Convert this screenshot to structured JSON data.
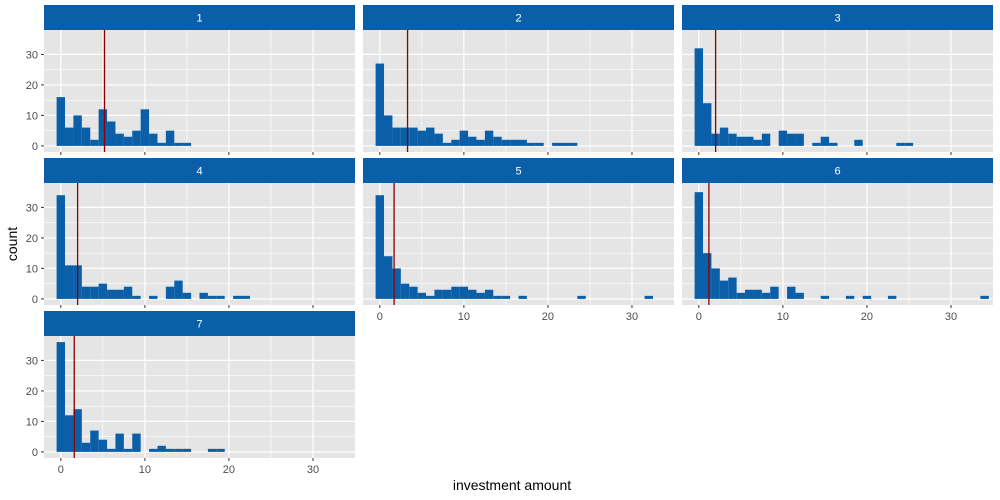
{
  "colors": {
    "bar": "#0a5fa8",
    "strip": "#0a5fa8",
    "panel_bg": "#e5e5e5",
    "grid": "#ffffff",
    "mean_line": "#8b0000"
  },
  "chart_data": {
    "type": "bar",
    "subtype": "faceted-histogram",
    "xlabel": "investment amount",
    "ylabel": "count",
    "xlim": [
      -2,
      35
    ],
    "ylim": [
      -2,
      38
    ],
    "x_ticks": [
      0,
      10,
      20,
      30
    ],
    "y_ticks": [
      0,
      10,
      20,
      30
    ],
    "bin_width": 1,
    "grid": true,
    "facet_columns": 3,
    "facets": [
      {
        "label": "1",
        "mean": 5.2,
        "bins": [
          [
            0,
            16
          ],
          [
            1,
            6
          ],
          [
            2,
            10
          ],
          [
            3,
            6
          ],
          [
            4,
            2
          ],
          [
            5,
            12
          ],
          [
            6,
            8
          ],
          [
            7,
            4
          ],
          [
            8,
            3
          ],
          [
            9,
            5
          ],
          [
            10,
            12
          ],
          [
            11,
            4
          ],
          [
            12,
            1
          ],
          [
            13,
            5
          ],
          [
            14,
            1
          ],
          [
            15,
            1
          ]
        ]
      },
      {
        "label": "2",
        "mean": 3.3,
        "bins": [
          [
            0,
            27
          ],
          [
            1,
            10
          ],
          [
            2,
            6
          ],
          [
            3,
            6
          ],
          [
            4,
            6
          ],
          [
            5,
            5
          ],
          [
            6,
            6
          ],
          [
            7,
            4
          ],
          [
            8,
            1
          ],
          [
            9,
            2
          ],
          [
            10,
            5
          ],
          [
            11,
            3
          ],
          [
            12,
            2
          ],
          [
            13,
            5
          ],
          [
            14,
            3
          ],
          [
            15,
            2
          ],
          [
            16,
            2
          ],
          [
            17,
            2
          ],
          [
            18,
            1
          ],
          [
            19,
            1
          ],
          [
            21,
            1
          ],
          [
            22,
            1
          ],
          [
            23,
            1
          ]
        ]
      },
      {
        "label": "3",
        "mean": 2.0,
        "bins": [
          [
            0,
            32
          ],
          [
            1,
            14
          ],
          [
            2,
            4
          ],
          [
            3,
            6
          ],
          [
            4,
            4
          ],
          [
            5,
            3
          ],
          [
            6,
            3
          ],
          [
            7,
            2
          ],
          [
            8,
            4
          ],
          [
            10,
            5
          ],
          [
            11,
            4
          ],
          [
            12,
            4
          ],
          [
            14,
            1
          ],
          [
            15,
            3
          ],
          [
            16,
            1
          ],
          [
            19,
            2
          ],
          [
            24,
            1
          ],
          [
            25,
            1
          ]
        ]
      },
      {
        "label": "4",
        "mean": 2.0,
        "bins": [
          [
            0,
            34
          ],
          [
            1,
            11
          ],
          [
            2,
            11
          ],
          [
            3,
            4
          ],
          [
            4,
            4
          ],
          [
            5,
            5
          ],
          [
            6,
            3
          ],
          [
            7,
            3
          ],
          [
            8,
            4
          ],
          [
            9,
            1
          ],
          [
            11,
            1
          ],
          [
            13,
            4
          ],
          [
            14,
            6
          ],
          [
            15,
            2
          ],
          [
            17,
            2
          ],
          [
            18,
            1
          ],
          [
            19,
            1
          ],
          [
            21,
            1
          ],
          [
            22,
            1
          ]
        ]
      },
      {
        "label": "5",
        "mean": 1.7,
        "bins": [
          [
            0,
            34
          ],
          [
            1,
            14
          ],
          [
            2,
            10
          ],
          [
            3,
            5
          ],
          [
            4,
            4
          ],
          [
            5,
            2
          ],
          [
            6,
            1
          ],
          [
            7,
            3
          ],
          [
            8,
            3
          ],
          [
            9,
            4
          ],
          [
            10,
            4
          ],
          [
            11,
            3
          ],
          [
            12,
            2
          ],
          [
            13,
            3
          ],
          [
            14,
            1
          ],
          [
            15,
            1
          ],
          [
            17,
            1
          ],
          [
            24,
            1
          ],
          [
            32,
            1
          ]
        ]
      },
      {
        "label": "6",
        "mean": 1.2,
        "bins": [
          [
            0,
            35
          ],
          [
            1,
            15
          ],
          [
            2,
            10
          ],
          [
            3,
            6
          ],
          [
            4,
            7
          ],
          [
            5,
            2
          ],
          [
            6,
            3
          ],
          [
            7,
            3
          ],
          [
            8,
            2
          ],
          [
            9,
            4
          ],
          [
            11,
            4
          ],
          [
            12,
            2
          ],
          [
            15,
            1
          ],
          [
            18,
            1
          ],
          [
            20,
            1
          ],
          [
            23,
            1
          ],
          [
            34,
            1
          ]
        ]
      },
      {
        "label": "7",
        "mean": 1.6,
        "bins": [
          [
            0,
            36
          ],
          [
            1,
            12
          ],
          [
            2,
            14
          ],
          [
            3,
            3
          ],
          [
            4,
            7
          ],
          [
            5,
            4
          ],
          [
            6,
            1
          ],
          [
            7,
            6
          ],
          [
            8,
            1
          ],
          [
            9,
            6
          ],
          [
            11,
            1
          ],
          [
            12,
            2
          ],
          [
            13,
            1
          ],
          [
            14,
            1
          ],
          [
            15,
            1
          ],
          [
            18,
            1
          ],
          [
            19,
            1
          ]
        ]
      }
    ]
  }
}
